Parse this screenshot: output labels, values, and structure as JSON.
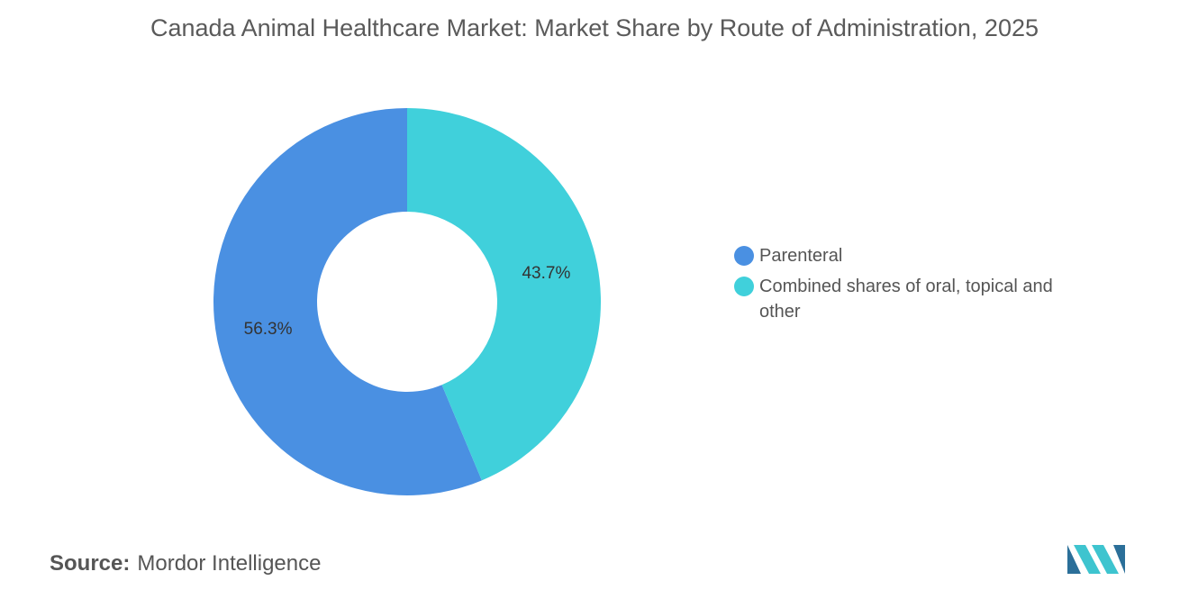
{
  "chart_data": {
    "type": "donut",
    "title": "Canada Animal Healthcare Market: Market Share by Route of Administration, 2025",
    "categories": [
      "Parenteral",
      "Combined shares of oral, topical and other"
    ],
    "values": [
      56.3,
      43.7
    ],
    "value_labels": [
      "56.3%",
      "43.7%"
    ],
    "colors": [
      "#4a90e2",
      "#40d0db"
    ],
    "legend": "right"
  },
  "source_label": "Source:",
  "source": "Mordor Intelligence"
}
